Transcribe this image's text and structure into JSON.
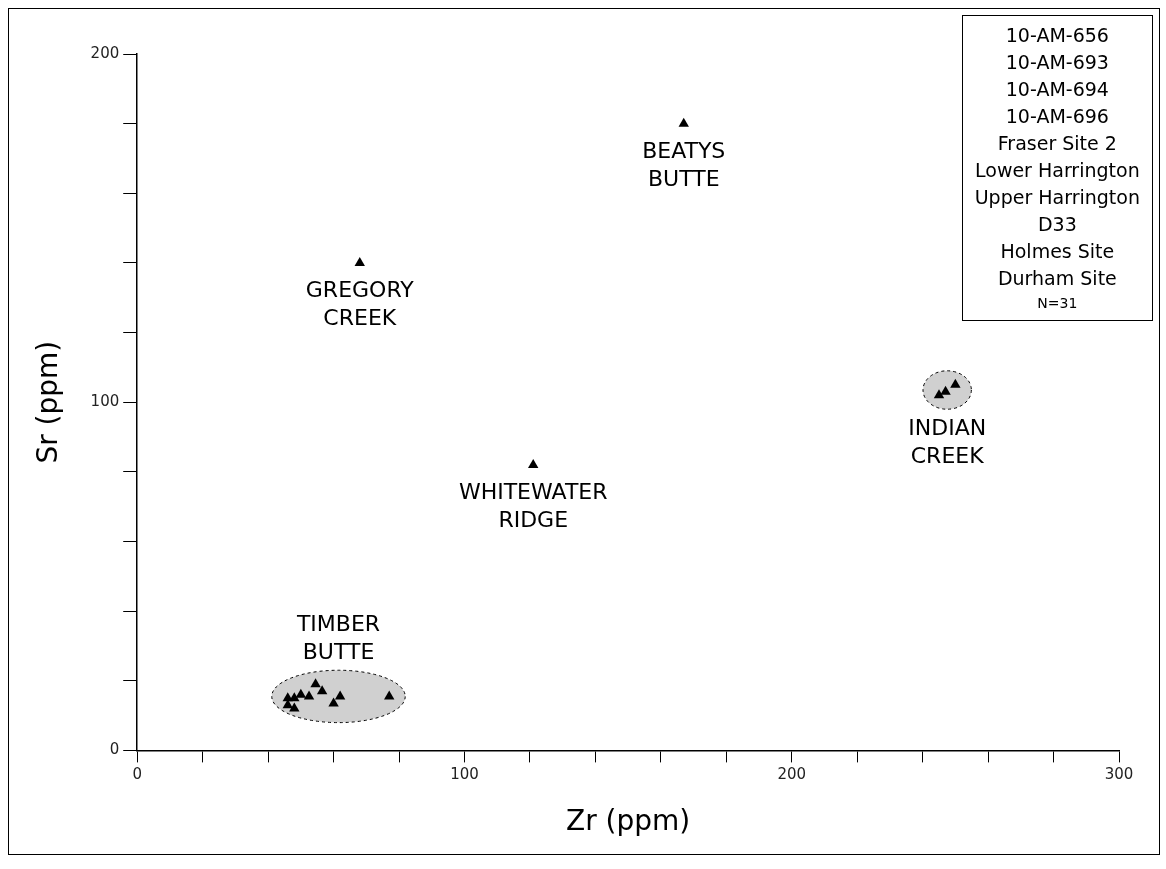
{
  "chart_data": {
    "type": "scatter",
    "xlabel": "Zr (ppm)",
    "ylabel": "Sr (ppm)",
    "xlim": [
      0,
      300
    ],
    "ylim": [
      0,
      200
    ],
    "xticks": [
      0,
      {
        "value": 20,
        "label": null
      },
      {
        "value": 40,
        "label": null
      },
      {
        "value": 60,
        "label": null
      },
      {
        "value": 80,
        "label": null
      },
      100,
      {
        "value": 120,
        "label": null
      },
      {
        "value": 140,
        "label": null
      },
      {
        "value": 160,
        "label": null
      },
      {
        "value": 180,
        "label": null
      },
      200,
      {
        "value": 220,
        "label": null
      },
      {
        "value": 240,
        "label": null
      },
      {
        "value": 260,
        "label": null
      },
      {
        "value": 280,
        "label": null
      },
      300
    ],
    "yticks": [
      0,
      {
        "value": 20,
        "label": null
      },
      {
        "value": 40,
        "label": null
      },
      {
        "value": 60,
        "label": null
      },
      {
        "value": 80,
        "label": null
      },
      100,
      {
        "value": 120,
        "label": null
      },
      {
        "value": 140,
        "label": null
      },
      {
        "value": 160,
        "label": null
      },
      {
        "value": 180,
        "label": null
      },
      200
    ],
    "grid": false,
    "legend": false,
    "marker": "triangle",
    "series": [
      {
        "name": "BEATYS BUTTE",
        "color": "#000000",
        "x": [
          167
        ],
        "values": [
          180
        ]
      },
      {
        "name": "GREGORY CREEK",
        "color": "#000000",
        "x": [
          68
        ],
        "values": [
          140
        ]
      },
      {
        "name": "WHITEWATER RIDGE",
        "color": "#000000",
        "x": [
          121
        ],
        "values": [
          82
        ]
      },
      {
        "name": "INDIAN CREEK",
        "color": "#000000",
        "x": [
          245,
          247,
          250
        ],
        "values": [
          102,
          103,
          105
        ]
      },
      {
        "name": "TIMBER BUTTE",
        "color": "#000000",
        "x": [
          46,
          46,
          48,
          48,
          50,
          52.5,
          54.5,
          56.5,
          60,
          62,
          77
        ],
        "values": [
          15,
          13,
          12,
          15,
          16,
          15.5,
          19,
          17,
          13.5,
          15.5,
          15.5
        ]
      }
    ],
    "annotations": [
      "10-AM-656",
      "10-AM-693",
      "10-AM-694",
      "10-AM-696",
      "Fraser Site 2",
      "Lower Harrington",
      "Upper Harrington",
      "D33",
      "Holmes Site",
      "Durham Site",
      "N=31"
    ]
  }
}
